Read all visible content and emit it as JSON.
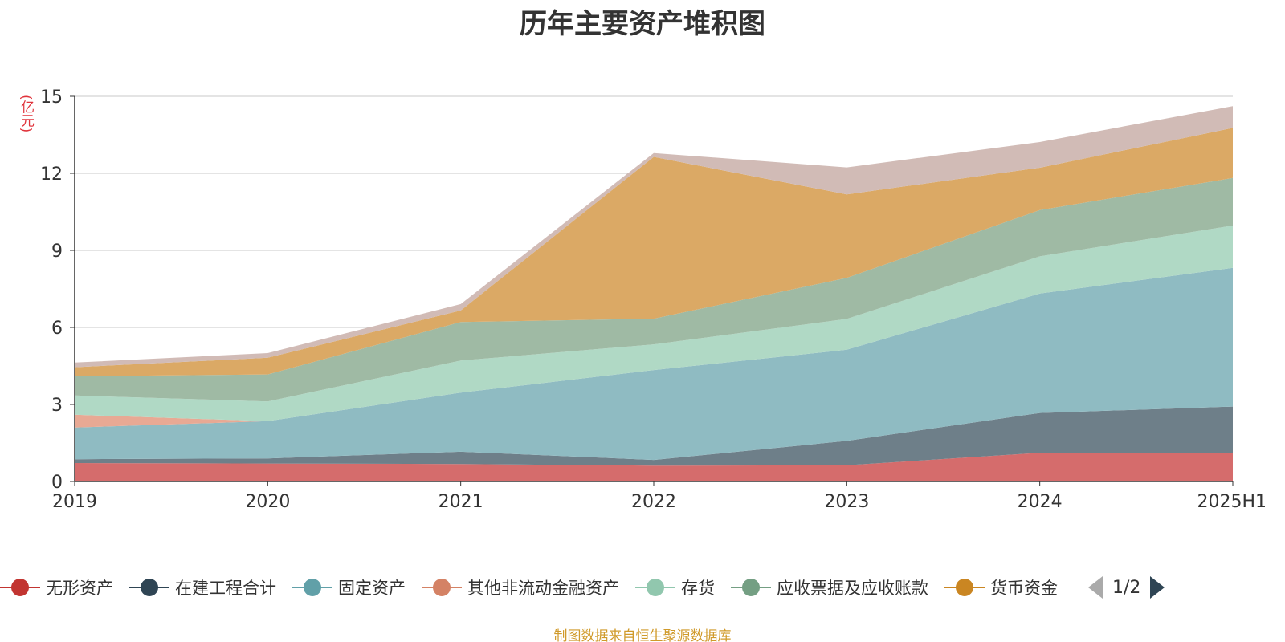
{
  "chart_data": {
    "type": "area",
    "title": "历年主要资产堆积图",
    "ylabel": "(亿元)",
    "ylim": [
      0,
      15
    ],
    "yticks": [
      "0",
      "3",
      "6",
      "9",
      "12",
      "15"
    ],
    "categories": [
      "2019",
      "2020",
      "2021",
      "2022",
      "2023",
      "2024",
      "2025H1"
    ],
    "stacked": true,
    "grid": true,
    "legend_position": "bottom",
    "series": [
      {
        "name": "无形资产",
        "color": "#d56c6c",
        "legend_color": "#c23531",
        "values": [
          0.72,
          0.7,
          0.68,
          0.62,
          0.63,
          1.12,
          1.12
        ]
      },
      {
        "name": "在建工程合计",
        "color": "#6e7f89",
        "legend_color": "#2f4554",
        "values": [
          0.15,
          0.2,
          0.48,
          0.22,
          0.95,
          1.55,
          1.8
        ]
      },
      {
        "name": "固定资产",
        "color": "#8fbbc2",
        "legend_color": "#61a0a8",
        "values": [
          1.23,
          1.45,
          2.3,
          3.5,
          3.55,
          4.65,
          5.4
        ]
      },
      {
        "name": "其他非流动金融资产",
        "color": "#e8a994",
        "legend_color": "#d48265",
        "values": [
          0.5,
          0.0,
          0.0,
          0.0,
          0.0,
          0.0,
          0.0
        ]
      },
      {
        "name": "存货",
        "color": "#b0d9c5",
        "legend_color": "#91c7ae",
        "values": [
          0.75,
          0.77,
          1.25,
          1.0,
          1.2,
          1.45,
          1.65
        ]
      },
      {
        "name": "应收票据及应收账款",
        "color": "#9fbaa4",
        "legend_color": "#749f83",
        "values": [
          0.75,
          1.05,
          1.5,
          1.0,
          1.6,
          1.8,
          1.85
        ]
      },
      {
        "name": "货币资金",
        "color": "#dba965",
        "legend_color": "#ca8622",
        "values": [
          0.35,
          0.65,
          0.45,
          6.3,
          3.25,
          1.65,
          1.95
        ]
      },
      {
        "name": "",
        "color": "#d1bbb6",
        "legend_color": "#bda29a",
        "values": [
          0.18,
          0.18,
          0.25,
          0.15,
          1.05,
          1.0,
          0.85
        ]
      }
    ]
  },
  "legend": {
    "pager_text": "1/2"
  },
  "footer": {
    "source": "制图数据来自恒生聚源数据库"
  }
}
